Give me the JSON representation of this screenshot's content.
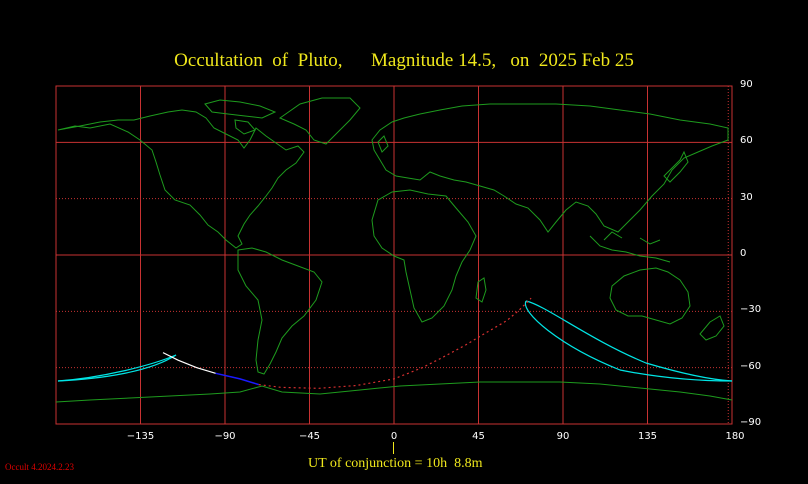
{
  "title": "Occultation  of  Pluto,      Magnitude 14.5,   on  2025 Feb 25",
  "x_axis": {
    "ticks": [
      "−135",
      "−90",
      "−45",
      "0",
      "45",
      "90",
      "135",
      "180"
    ],
    "range_deg": [
      -180,
      180
    ]
  },
  "y_axis": {
    "ticks": [
      "90",
      "60",
      "30",
      "0",
      "−30",
      "−60",
      "−90"
    ],
    "range_deg": [
      -90,
      90
    ]
  },
  "conjunction_label": "UT of conjunction = 10h  8.8m",
  "version_label": "Occult 4.2024.2.23",
  "colors": {
    "title": "#f0e81c",
    "grid": "#c83232",
    "coastline": "#1e9b1e",
    "shadow_limits": "#00e5e5",
    "central_daylight": "#ffffff",
    "central_night": "#1a1aff",
    "central_below_horizon": "#d83030",
    "version": "#e00000"
  },
  "central_line_lonlat": [
    [
      -123,
      -52
    ],
    [
      -115,
      -56
    ],
    [
      -105,
      -60
    ],
    [
      -95,
      -63
    ],
    [
      -82,
      -66
    ],
    [
      -72,
      -69
    ],
    [
      -60,
      -70.5
    ],
    [
      -40,
      -71
    ],
    [
      -20,
      -69.5
    ],
    [
      0,
      -66
    ],
    [
      15,
      -60
    ],
    [
      25,
      -55
    ],
    [
      38,
      -48
    ],
    [
      48,
      -42
    ],
    [
      60,
      -35
    ],
    [
      67,
      -29
    ],
    [
      73,
      -23
    ]
  ],
  "central_segments": {
    "daylight_end_index": 3,
    "night_end_index": 5
  }
}
